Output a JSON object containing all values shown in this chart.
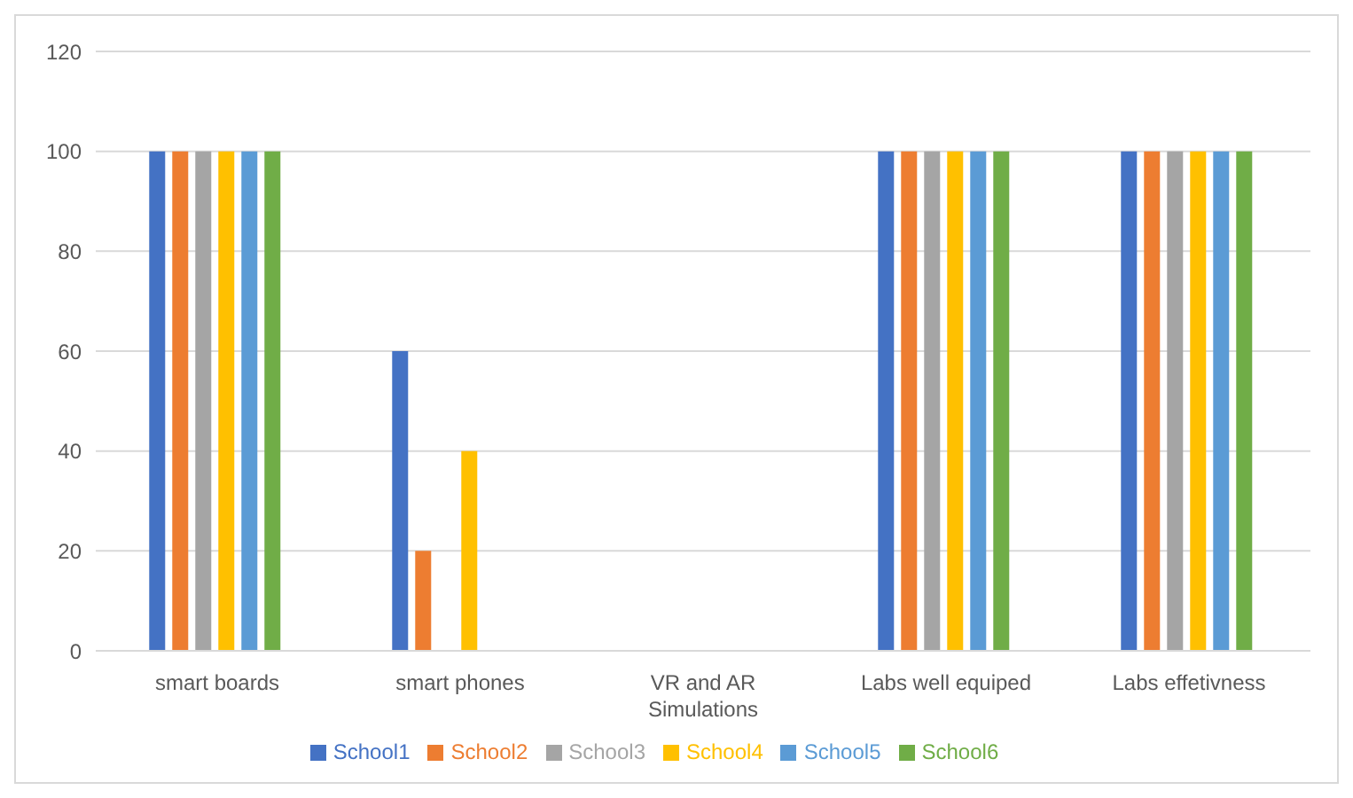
{
  "chart_data": {
    "type": "bar",
    "categories": [
      "smart boards",
      "smart phones",
      "VR and AR Simulations",
      "Labs well equiped",
      "Labs effetivness"
    ],
    "series": [
      {
        "name": "School1",
        "color": "#4472c4",
        "values": [
          100,
          60,
          0,
          100,
          100
        ]
      },
      {
        "name": "School2",
        "color": "#ed7d31",
        "values": [
          100,
          20,
          0,
          100,
          100
        ]
      },
      {
        "name": "School3",
        "color": "#a5a5a5",
        "values": [
          100,
          0,
          0,
          100,
          100
        ]
      },
      {
        "name": "School4",
        "color": "#ffc000",
        "values": [
          100,
          40,
          0,
          100,
          100
        ]
      },
      {
        "name": "School5",
        "color": "#5b9bd5",
        "values": [
          100,
          0,
          0,
          100,
          100
        ]
      },
      {
        "name": "School6",
        "color": "#70ad47",
        "values": [
          100,
          0,
          0,
          100,
          100
        ]
      }
    ],
    "ylim": [
      0,
      120
    ],
    "yticks": [
      0,
      20,
      40,
      60,
      80,
      100,
      120
    ],
    "grid": "y",
    "legend": "bottom"
  }
}
